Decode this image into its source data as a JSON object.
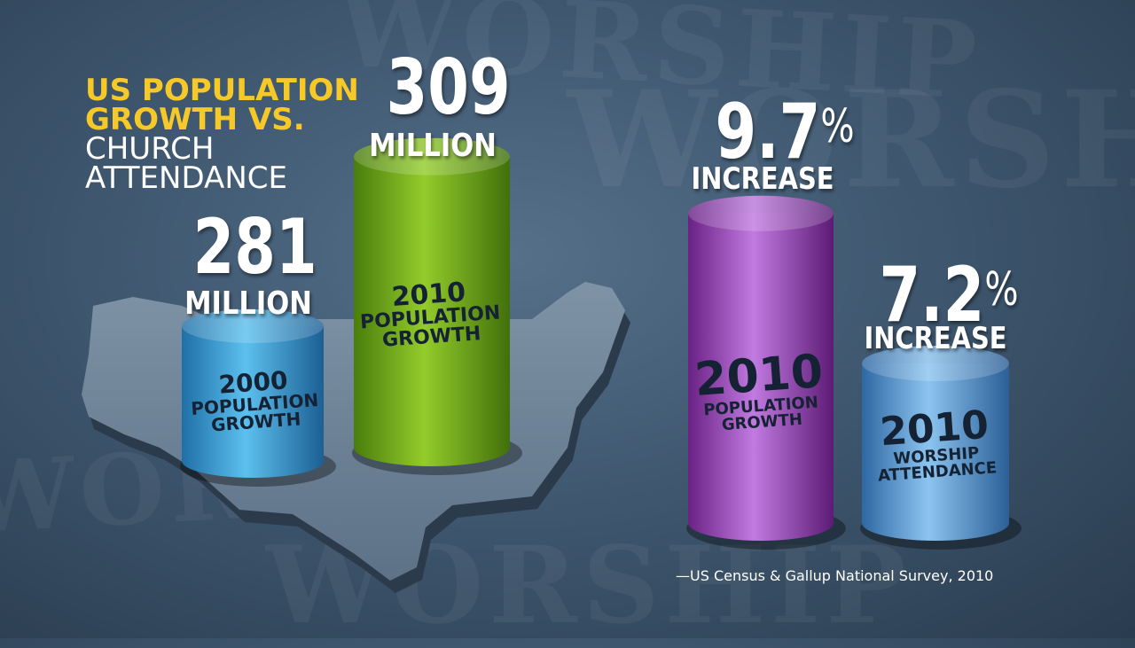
{
  "title": {
    "line1": "US POPULATION",
    "line2": "GROWTH VS.",
    "line3": "CHURCH",
    "line4": "ATTENDANCE"
  },
  "colors": {
    "title_accent": "#f6c928",
    "bar_2000_population": "#3aa6df",
    "bar_2010_population": "#7cb21d",
    "bar_2010_population_pct": "#a24bc4",
    "bar_2010_worship": "#5a9bd8"
  },
  "chart_data": [
    {
      "type": "bar",
      "title": "US POPULATION GROWTH VS. CHURCH ATTENDANCE",
      "categories": [
        "2000 POPULATION GROWTH",
        "2010 POPULATION GROWTH"
      ],
      "values": [
        281,
        309
      ],
      "value_labels": [
        "281",
        "309"
      ],
      "unit": "MILLION",
      "bar_labels": [
        {
          "year": "2000",
          "line1": "POPULATION",
          "line2": "GROWTH"
        },
        {
          "year": "2010",
          "line1": "POPULATION",
          "line2": "GROWTH"
        }
      ]
    },
    {
      "type": "bar",
      "categories": [
        "2010 POPULATION GROWTH",
        "2010 WORSHIP ATTENDANCE"
      ],
      "values": [
        9.7,
        7.2
      ],
      "value_labels": [
        "9.7",
        "7.2"
      ],
      "unit": "%",
      "unit_text": "INCREASE",
      "bar_labels": [
        {
          "year": "2010",
          "line1": "POPULATION",
          "line2": "GROWTH"
        },
        {
          "year": "2010",
          "line1": "WORSHIP",
          "line2": "ATTENDANCE"
        }
      ]
    }
  ],
  "background_words": [
    "WORSHIP",
    "WORSHIP",
    "WORSHIP",
    "WORSHIP"
  ],
  "source": "—US Census & Gallup National Survey, 2010"
}
